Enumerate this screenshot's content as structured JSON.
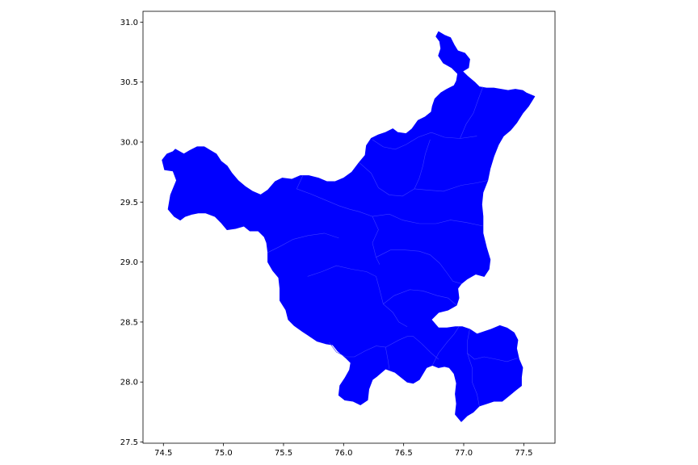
{
  "figure": {
    "fill_color": "#0000ff",
    "border_color": "#3b3bff",
    "background": "#ffffff"
  },
  "axes": {
    "x_ticks": [
      {
        "value": 74.5,
        "label": "74.5"
      },
      {
        "value": 75.0,
        "label": "75.0"
      },
      {
        "value": 75.5,
        "label": "75.5"
      },
      {
        "value": 76.0,
        "label": "76.0"
      },
      {
        "value": 76.5,
        "label": "76.5"
      },
      {
        "value": 77.0,
        "label": "77.0"
      },
      {
        "value": 77.5,
        "label": "77.5"
      }
    ],
    "y_ticks": [
      {
        "value": 27.5,
        "label": "27.5"
      },
      {
        "value": 28.0,
        "label": "28.0"
      },
      {
        "value": 28.5,
        "label": "28.5"
      },
      {
        "value": 29.0,
        "label": "29.0"
      },
      {
        "value": 29.5,
        "label": "29.5"
      },
      {
        "value": 30.0,
        "label": "30.0"
      },
      {
        "value": 30.5,
        "label": "30.5"
      },
      {
        "value": 31.0,
        "label": "31.0"
      }
    ],
    "xlim": [
      74.33,
      77.76
    ],
    "ylim": [
      27.49,
      31.09
    ]
  },
  "region_outline": [
    [
      76.79,
      30.92
    ],
    [
      76.84,
      30.89
    ],
    [
      76.89,
      30.87
    ],
    [
      76.92,
      30.81
    ],
    [
      76.95,
      30.76
    ],
    [
      77.01,
      30.74
    ],
    [
      77.05,
      30.69
    ],
    [
      77.04,
      30.62
    ],
    [
      76.99,
      30.59
    ],
    [
      77.03,
      30.55
    ],
    [
      77.09,
      30.5
    ],
    [
      77.13,
      30.46
    ],
    [
      77.19,
      30.45
    ],
    [
      77.25,
      30.45
    ],
    [
      77.31,
      30.44
    ],
    [
      77.37,
      30.43
    ],
    [
      77.43,
      30.44
    ],
    [
      77.49,
      30.43
    ],
    [
      77.52,
      30.41
    ],
    [
      77.59,
      30.38
    ],
    [
      77.54,
      30.3
    ],
    [
      77.49,
      30.24
    ],
    [
      77.44,
      30.16
    ],
    [
      77.39,
      30.1
    ],
    [
      77.33,
      30.05
    ],
    [
      77.29,
      29.98
    ],
    [
      77.25,
      29.88
    ],
    [
      77.22,
      29.78
    ],
    [
      77.2,
      29.68
    ],
    [
      77.16,
      29.58
    ],
    [
      77.15,
      29.48
    ],
    [
      77.16,
      29.38
    ],
    [
      77.16,
      29.24
    ],
    [
      77.19,
      29.12
    ],
    [
      77.22,
      29.02
    ],
    [
      77.21,
      28.94
    ],
    [
      77.17,
      28.88
    ],
    [
      77.1,
      28.9
    ],
    [
      77.03,
      28.86
    ],
    [
      76.98,
      28.82
    ],
    [
      76.95,
      28.78
    ],
    [
      76.96,
      28.7
    ],
    [
      76.94,
      28.64
    ],
    [
      76.87,
      28.6
    ],
    [
      76.79,
      28.58
    ],
    [
      76.73,
      28.52
    ],
    [
      76.79,
      28.45
    ],
    [
      76.86,
      28.45
    ],
    [
      76.93,
      28.46
    ],
    [
      76.99,
      28.46
    ],
    [
      77.05,
      28.44
    ],
    [
      77.11,
      28.4
    ],
    [
      77.17,
      28.42
    ],
    [
      77.23,
      28.44
    ],
    [
      77.3,
      28.47
    ],
    [
      77.36,
      28.45
    ],
    [
      77.42,
      28.41
    ],
    [
      77.45,
      28.35
    ],
    [
      77.44,
      28.28
    ],
    [
      77.46,
      28.19
    ],
    [
      77.49,
      28.12
    ],
    [
      77.48,
      28.04
    ],
    [
      77.48,
      27.97
    ],
    [
      77.43,
      27.93
    ],
    [
      77.37,
      27.88
    ],
    [
      77.32,
      27.84
    ],
    [
      77.25,
      27.84
    ],
    [
      77.19,
      27.82
    ],
    [
      77.13,
      27.8
    ],
    [
      77.08,
      27.75
    ],
    [
      77.03,
      27.72
    ],
    [
      76.98,
      27.67
    ],
    [
      76.93,
      27.73
    ],
    [
      76.94,
      27.82
    ],
    [
      76.93,
      27.9
    ],
    [
      76.94,
      27.99
    ],
    [
      76.92,
      28.07
    ],
    [
      76.88,
      28.12
    ],
    [
      76.84,
      28.13
    ],
    [
      76.79,
      28.12
    ],
    [
      76.74,
      28.14
    ],
    [
      76.69,
      28.12
    ],
    [
      76.63,
      28.02
    ],
    [
      76.58,
      27.99
    ],
    [
      76.53,
      28.0
    ],
    [
      76.48,
      28.04
    ],
    [
      76.43,
      28.08
    ],
    [
      76.35,
      28.11
    ],
    [
      76.28,
      28.05
    ],
    [
      76.24,
      28.02
    ],
    [
      76.21,
      27.94
    ],
    [
      76.2,
      27.85
    ],
    [
      76.14,
      27.81
    ],
    [
      76.08,
      27.84
    ],
    [
      76.01,
      27.85
    ],
    [
      75.96,
      27.89
    ],
    [
      75.97,
      27.97
    ],
    [
      76.01,
      28.03
    ],
    [
      76.05,
      28.1
    ],
    [
      76.06,
      28.16
    ],
    [
      76.02,
      28.2
    ],
    [
      75.95,
      28.26
    ],
    [
      75.91,
      28.31
    ],
    [
      75.85,
      28.32
    ],
    [
      75.78,
      28.34
    ],
    [
      75.72,
      28.38
    ],
    [
      75.66,
      28.42
    ],
    [
      75.59,
      28.47
    ],
    [
      75.54,
      28.52
    ],
    [
      75.52,
      28.6
    ],
    [
      75.47,
      28.68
    ],
    [
      75.47,
      28.78
    ],
    [
      75.46,
      28.87
    ],
    [
      75.41,
      28.93
    ],
    [
      75.37,
      29.0
    ],
    [
      75.37,
      29.08
    ],
    [
      75.36,
      29.16
    ],
    [
      75.34,
      29.21
    ],
    [
      75.29,
      29.26
    ],
    [
      75.22,
      29.26
    ],
    [
      75.17,
      29.3
    ],
    [
      75.1,
      29.28
    ],
    [
      75.03,
      29.27
    ],
    [
      74.98,
      29.33
    ],
    [
      74.93,
      29.38
    ],
    [
      74.85,
      29.41
    ],
    [
      74.79,
      29.41
    ],
    [
      74.74,
      29.4
    ],
    [
      74.68,
      29.38
    ],
    [
      74.64,
      29.35
    ],
    [
      74.59,
      29.38
    ],
    [
      74.54,
      29.44
    ],
    [
      74.56,
      29.56
    ],
    [
      74.61,
      29.68
    ],
    [
      74.58,
      29.76
    ],
    [
      74.51,
      29.77
    ],
    [
      74.49,
      29.85
    ],
    [
      74.53,
      29.9
    ],
    [
      74.58,
      29.92
    ],
    [
      74.6,
      29.94
    ],
    [
      74.67,
      29.9
    ],
    [
      74.72,
      29.93
    ],
    [
      74.78,
      29.96
    ],
    [
      74.84,
      29.96
    ],
    [
      74.89,
      29.93
    ],
    [
      74.94,
      29.9
    ],
    [
      74.98,
      29.84
    ],
    [
      75.03,
      29.8
    ],
    [
      75.07,
      29.74
    ],
    [
      75.12,
      29.68
    ],
    [
      75.18,
      29.63
    ],
    [
      75.24,
      29.59
    ],
    [
      75.31,
      29.56
    ],
    [
      75.37,
      29.6
    ],
    [
      75.43,
      29.67
    ],
    [
      75.49,
      29.7
    ],
    [
      75.57,
      29.69
    ],
    [
      75.64,
      29.72
    ],
    [
      75.71,
      29.72
    ],
    [
      75.79,
      29.7
    ],
    [
      75.86,
      29.67
    ],
    [
      75.93,
      29.67
    ],
    [
      76.0,
      29.7
    ],
    [
      76.07,
      29.75
    ],
    [
      76.13,
      29.83
    ],
    [
      76.18,
      29.89
    ],
    [
      76.19,
      29.97
    ],
    [
      76.23,
      30.03
    ],
    [
      76.29,
      30.06
    ],
    [
      76.35,
      30.08
    ],
    [
      76.41,
      30.11
    ],
    [
      76.45,
      30.08
    ],
    [
      76.52,
      30.07
    ],
    [
      76.57,
      30.11
    ],
    [
      76.62,
      30.18
    ],
    [
      76.68,
      30.21
    ],
    [
      76.73,
      30.25
    ],
    [
      76.74,
      30.3
    ],
    [
      76.76,
      30.36
    ],
    [
      76.81,
      30.41
    ],
    [
      76.86,
      30.44
    ],
    [
      76.92,
      30.47
    ],
    [
      76.94,
      30.51
    ],
    [
      76.95,
      30.57
    ],
    [
      76.9,
      30.62
    ],
    [
      76.83,
      30.66
    ],
    [
      76.79,
      30.72
    ],
    [
      76.81,
      30.78
    ],
    [
      76.8,
      30.84
    ],
    [
      76.77,
      30.88
    ]
  ],
  "district_borders": [
    [
      [
        76.24,
        30.02
      ],
      [
        76.33,
        29.96
      ],
      [
        76.43,
        29.94
      ],
      [
        76.52,
        29.98
      ],
      [
        76.62,
        30.04
      ],
      [
        76.73,
        30.08
      ],
      [
        76.84,
        30.04
      ],
      [
        76.97,
        30.03
      ],
      [
        77.11,
        30.05
      ]
    ],
    [
      [
        76.97,
        30.03
      ],
      [
        77.02,
        30.15
      ],
      [
        77.08,
        30.24
      ],
      [
        77.13,
        30.38
      ],
      [
        77.16,
        30.46
      ]
    ],
    [
      [
        76.13,
        29.83
      ],
      [
        76.23,
        29.74
      ],
      [
        76.29,
        29.62
      ],
      [
        76.38,
        29.56
      ],
      [
        76.49,
        29.55
      ],
      [
        76.59,
        29.61
      ],
      [
        76.63,
        29.7
      ],
      [
        76.66,
        29.8
      ],
      [
        76.68,
        29.9
      ],
      [
        76.72,
        30.02
      ]
    ],
    [
      [
        76.59,
        29.61
      ],
      [
        76.7,
        29.6
      ],
      [
        76.83,
        29.59
      ],
      [
        76.98,
        29.64
      ],
      [
        77.11,
        29.66
      ],
      [
        77.2,
        29.68
      ]
    ],
    [
      [
        75.66,
        29.72
      ],
      [
        75.61,
        29.61
      ],
      [
        75.72,
        29.57
      ],
      [
        75.84,
        29.52
      ],
      [
        75.96,
        29.47
      ],
      [
        76.05,
        29.44
      ],
      [
        76.13,
        29.42
      ],
      [
        76.24,
        29.38
      ],
      [
        76.29,
        29.27
      ],
      [
        76.24,
        29.16
      ],
      [
        76.27,
        29.04
      ],
      [
        76.3,
        28.98
      ]
    ],
    [
      [
        75.37,
        29.08
      ],
      [
        75.47,
        29.13
      ],
      [
        75.58,
        29.19
      ],
      [
        75.7,
        29.22
      ],
      [
        75.84,
        29.24
      ],
      [
        75.96,
        29.2
      ]
    ],
    [
      [
        76.24,
        29.38
      ],
      [
        76.38,
        29.4
      ],
      [
        76.49,
        29.35
      ],
      [
        76.63,
        29.32
      ],
      [
        76.77,
        29.32
      ],
      [
        76.89,
        29.35
      ],
      [
        77.02,
        29.33
      ],
      [
        77.16,
        29.3
      ]
    ],
    [
      [
        76.27,
        29.04
      ],
      [
        76.39,
        29.1
      ],
      [
        76.51,
        29.1
      ],
      [
        76.63,
        29.09
      ],
      [
        76.72,
        29.06
      ],
      [
        76.8,
        28.99
      ],
      [
        76.86,
        28.91
      ],
      [
        76.91,
        28.84
      ],
      [
        76.98,
        28.82
      ]
    ],
    [
      [
        75.7,
        28.88
      ],
      [
        75.82,
        28.92
      ],
      [
        75.94,
        28.97
      ],
      [
        76.07,
        28.94
      ],
      [
        76.19,
        28.92
      ],
      [
        76.27,
        28.88
      ],
      [
        76.3,
        28.77
      ],
      [
        76.33,
        28.65
      ],
      [
        76.41,
        28.58
      ],
      [
        76.46,
        28.5
      ],
      [
        76.53,
        28.46
      ]
    ],
    [
      [
        76.33,
        28.65
      ],
      [
        76.42,
        28.72
      ],
      [
        76.55,
        28.77
      ],
      [
        76.66,
        28.76
      ],
      [
        76.78,
        28.72
      ],
      [
        76.87,
        28.7
      ],
      [
        76.94,
        28.64
      ]
    ],
    [
      [
        75.88,
        28.33
      ],
      [
        75.94,
        28.25
      ],
      [
        76.02,
        28.21
      ],
      [
        76.09,
        28.21
      ],
      [
        76.18,
        28.26
      ],
      [
        76.27,
        28.3
      ],
      [
        76.35,
        28.29
      ],
      [
        76.46,
        28.35
      ],
      [
        76.53,
        28.38
      ],
      [
        76.58,
        28.38
      ],
      [
        76.65,
        28.32
      ],
      [
        76.73,
        28.24
      ],
      [
        76.79,
        28.19
      ]
    ],
    [
      [
        76.35,
        28.29
      ],
      [
        76.37,
        28.18
      ],
      [
        76.38,
        28.11
      ]
    ],
    [
      [
        76.74,
        28.14
      ],
      [
        76.79,
        28.24
      ],
      [
        76.86,
        28.33
      ],
      [
        76.92,
        28.4
      ],
      [
        76.96,
        28.46
      ]
    ],
    [
      [
        77.05,
        28.44
      ],
      [
        77.03,
        28.34
      ],
      [
        77.03,
        28.24
      ],
      [
        77.09,
        28.19
      ],
      [
        77.17,
        28.21
      ],
      [
        77.27,
        28.19
      ],
      [
        77.36,
        28.17
      ],
      [
        77.45,
        28.2
      ]
    ],
    [
      [
        77.03,
        28.24
      ],
      [
        77.07,
        28.12
      ],
      [
        77.07,
        28.0
      ],
      [
        77.11,
        27.9
      ],
      [
        77.13,
        27.8
      ]
    ]
  ]
}
